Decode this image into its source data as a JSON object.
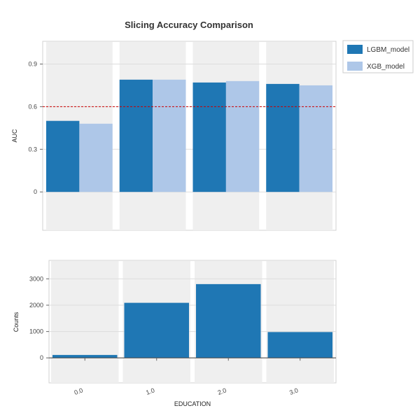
{
  "chart_data": [
    {
      "type": "bar",
      "title": "Slicing Accuracy Comparison",
      "ylabel": "AUC",
      "categories": [
        "0.0",
        "1.0",
        "2.0",
        "3.0"
      ],
      "series": [
        {
          "name": "LGBM_model",
          "color": "#1f77b4",
          "values": [
            0.5,
            0.79,
            0.77,
            0.76
          ]
        },
        {
          "name": "XGB_model",
          "color": "#aec7e8",
          "values": [
            0.48,
            0.79,
            0.78,
            0.75
          ]
        }
      ],
      "yticks": [
        "0",
        "0.3",
        "0.6",
        "0.9"
      ],
      "ylim": [
        -0.27,
        1.06
      ],
      "reference_line": {
        "value": 0.6,
        "color": "#cc0000",
        "style": "dashed"
      },
      "legend": "top-right-outside",
      "grid": true
    },
    {
      "type": "bar",
      "ylabel": "Counts",
      "xlabel": "EDUCATION",
      "categories": [
        "0.0",
        "1.0",
        "2.0",
        "3.0"
      ],
      "series": [
        {
          "color": "#1f77b4",
          "values": [
            110,
            2090,
            2800,
            980
          ]
        }
      ],
      "yticks": [
        "0",
        "1000",
        "2000",
        "3000"
      ],
      "ylim": [
        -950,
        3700
      ],
      "grid": true
    }
  ]
}
